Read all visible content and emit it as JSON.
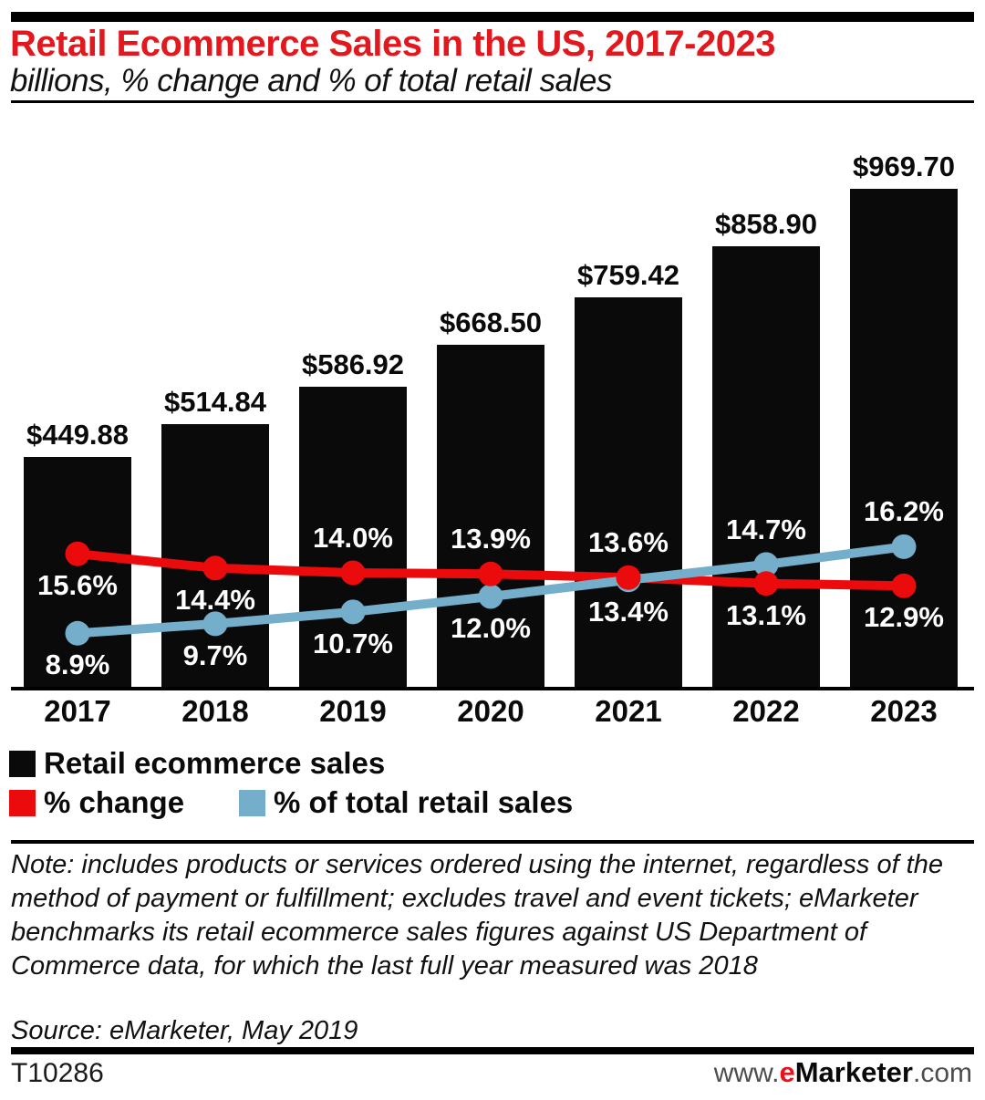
{
  "header": {
    "title": "Retail Ecommerce Sales in the US, 2017-2023",
    "subtitle": "billions, % change and % of total retail sales"
  },
  "chart_data": {
    "type": "bar+line",
    "title": "Retail Ecommerce Sales in the US, 2017-2023",
    "subtitle": "billions, % change and % of total retail sales",
    "categories": [
      "2017",
      "2018",
      "2019",
      "2020",
      "2021",
      "2022",
      "2023"
    ],
    "series": [
      {
        "name": "Retail ecommerce sales",
        "type": "bar",
        "unit": "billions of US dollars",
        "color": "#0a0a0a",
        "values": [
          449.88,
          514.84,
          586.92,
          668.5,
          759.42,
          858.9,
          969.7
        ],
        "labels": [
          "$449.88",
          "$514.84",
          "$586.92",
          "$668.50",
          "$759.42",
          "$858.90",
          "$969.70"
        ]
      },
      {
        "name": "% change",
        "type": "line",
        "unit": "percent",
        "color": "#eb0a0c",
        "values": [
          15.6,
          14.4,
          14.0,
          13.9,
          13.6,
          13.1,
          12.9
        ],
        "labels": [
          "15.6%",
          "14.4%",
          "14.0%",
          "13.9%",
          "13.6%",
          "13.1%",
          "12.9%"
        ],
        "label_pos": [
          "below",
          "below",
          "above",
          "above",
          "above",
          "below",
          "below"
        ]
      },
      {
        "name": "% of total retail sales",
        "type": "line",
        "unit": "percent",
        "color": "#74aecb",
        "values": [
          8.9,
          9.7,
          10.7,
          12.0,
          13.4,
          14.7,
          16.2
        ],
        "labels": [
          "8.9%",
          "9.7%",
          "10.7%",
          "12.0%",
          "13.4%",
          "14.7%",
          "16.2%"
        ],
        "label_pos": [
          "below",
          "below",
          "below",
          "below",
          "below",
          "above",
          "above"
        ]
      }
    ],
    "grid": false,
    "legend_position": "bottom-left",
    "bar_axis_range": [
      0,
      1000
    ],
    "pct_axis_range": [
      0,
      20
    ]
  },
  "note": {
    "text": "Note: includes products or services ordered using the internet, regardless of the method of payment or fulfillment; excludes travel and event tickets; eMarketer benchmarks its retail ecommerce sales figures against US Department of Commerce data, for which the last full year measured was 2018",
    "source": "Source: eMarketer, May 2019"
  },
  "footer": {
    "chart_id": "T10286",
    "url_prefix": "www.",
    "url_e": "e",
    "url_brand": "Marketer",
    "url_suffix": ".com"
  },
  "colors": {
    "title_red": "#e1191e",
    "line_red": "#eb0a0c",
    "line_blue": "#74aecb",
    "bar_black": "#0a0a0a"
  }
}
